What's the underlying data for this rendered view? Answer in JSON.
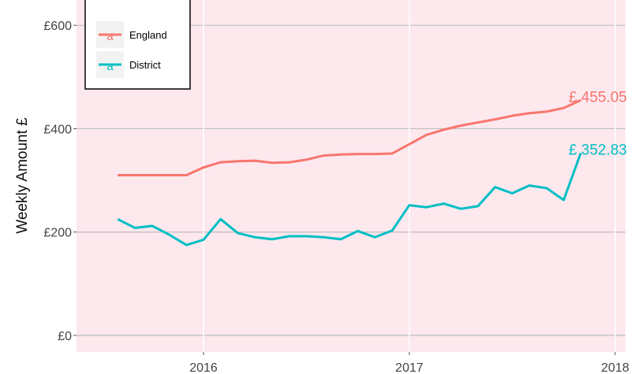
{
  "chart_data": {
    "type": "line",
    "y_label": "Weekly Amount £",
    "x": [
      2015.583,
      2015.667,
      2015.75,
      2015.833,
      2015.917,
      2016.0,
      2016.083,
      2016.167,
      2016.25,
      2016.333,
      2016.417,
      2016.5,
      2016.583,
      2016.667,
      2016.75,
      2016.833,
      2016.917,
      2017.0,
      2017.083,
      2017.167,
      2017.25,
      2017.333,
      2017.417,
      2017.5,
      2017.583,
      2017.667,
      2017.75,
      2017.833
    ],
    "series": [
      {
        "name": "England",
        "color": "#f8766d",
        "values": [
          310,
          310,
          310,
          310,
          310,
          325,
          335,
          337,
          338,
          334,
          335,
          340,
          348,
          350,
          351,
          351,
          352,
          370,
          388,
          398,
          406,
          412,
          418,
          425,
          430,
          433,
          440,
          455.05
        ],
        "value_labels": [
          null,
          null,
          null,
          null,
          null,
          null,
          null,
          null,
          null,
          null,
          null,
          null,
          null,
          null,
          null,
          null,
          null,
          null,
          null,
          null,
          null,
          null,
          null,
          null,
          null,
          null,
          null,
          "£ 455.05"
        ]
      },
      {
        "name": "District",
        "color": "#00bfc4",
        "values": [
          225,
          208,
          212,
          195,
          175,
          185,
          225,
          198,
          190,
          186,
          192,
          192,
          190,
          186,
          202,
          190,
          203,
          252,
          248,
          255,
          245,
          250,
          287,
          275,
          290,
          285,
          262,
          352.83
        ],
        "value_labels": [
          null,
          null,
          null,
          null,
          null,
          null,
          null,
          null,
          null,
          null,
          null,
          null,
          null,
          null,
          null,
          null,
          null,
          null,
          null,
          null,
          null,
          null,
          null,
          null,
          null,
          null,
          null,
          "£ 352.83"
        ]
      }
    ],
    "xlim": [
      2015.383,
      2018.05
    ],
    "xticks": [
      2016,
      2017,
      2018
    ],
    "ylim": [
      -32,
      649
    ],
    "yticks": [
      {
        "value": 0,
        "label": "£0"
      },
      {
        "value": 200,
        "label": "£200"
      },
      {
        "value": 400,
        "label": "£400"
      },
      {
        "value": 600,
        "label": "£600"
      }
    ],
    "grid": true,
    "legend_position": "top-left",
    "legend_key_glyph": "a",
    "panel_color": "#fde8ee"
  }
}
